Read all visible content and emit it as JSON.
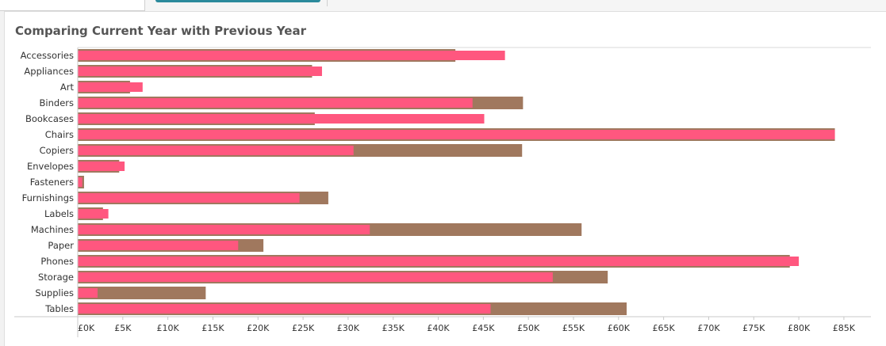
{
  "chart_data": {
    "type": "bar",
    "title": "Comparing Current Year with Previous Year",
    "orientation": "horizontal",
    "categories": [
      "Accessories",
      "Appliances",
      "Art",
      "Binders",
      "Bookcases",
      "Chairs",
      "Copiers",
      "Envelopes",
      "Fasteners",
      "Furnishings",
      "Labels",
      "Machines",
      "Paper",
      "Phones",
      "Storage",
      "Supplies",
      "Tables"
    ],
    "series": [
      {
        "name": "Previous Year",
        "color": "#a0785e",
        "values": [
          41900,
          26000,
          5800,
          49400,
          26300,
          84000,
          49300,
          4600,
          700,
          27800,
          2800,
          55900,
          20600,
          79000,
          58800,
          14200,
          60900
        ]
      },
      {
        "name": "Current Year",
        "color": "#ff577f",
        "values": [
          47400,
          27100,
          7200,
          43800,
          45100,
          84000,
          30600,
          5200,
          500,
          24600,
          3400,
          32400,
          17800,
          80000,
          52700,
          2200,
          45800
        ]
      }
    ],
    "xlim": [
      0,
      88000
    ],
    "x_ticks": [
      0,
      5000,
      10000,
      15000,
      20000,
      25000,
      30000,
      35000,
      40000,
      45000,
      50000,
      55000,
      60000,
      65000,
      70000,
      75000,
      80000,
      85000
    ],
    "x_tick_labels": [
      "£0K",
      "£5K",
      "£10K",
      "£15K",
      "£20K",
      "£25K",
      "£30K",
      "£35K",
      "£40K",
      "£45K",
      "£50K",
      "£55K",
      "£60K",
      "£65K",
      "£70K",
      "£75K",
      "£80K",
      "£85K"
    ],
    "xlabel": "",
    "ylabel": "",
    "grid": false,
    "legend": "none"
  }
}
